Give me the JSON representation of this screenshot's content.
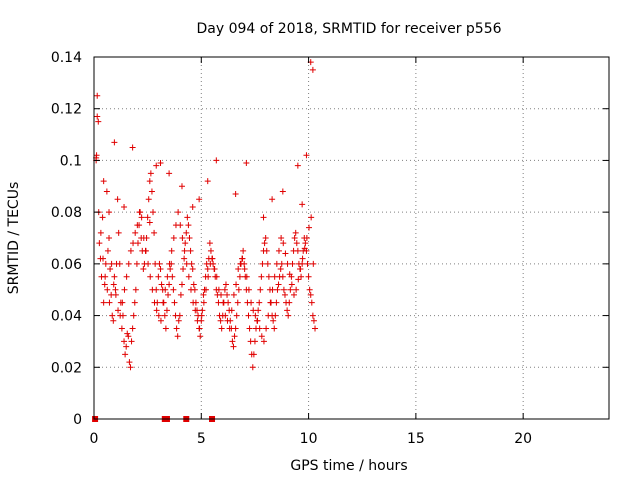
{
  "chart_data": {
    "type": "scatter",
    "title": "Day 094 of 2018, SRMTID for receiver p556",
    "xlabel": "GPS time / hours",
    "ylabel": "SRMTID / TECUs",
    "xlim": [
      0,
      24
    ],
    "ylim": [
      0,
      0.14
    ],
    "xticks": [
      0,
      5,
      10,
      15,
      20
    ],
    "xtick_labels": [
      "0",
      "5",
      "10",
      "15",
      "20"
    ],
    "yticks": [
      0,
      0.02,
      0.04,
      0.06,
      0.08,
      0.1,
      0.12,
      0.14
    ],
    "ytick_labels": [
      "0",
      "0.02",
      "0.04",
      "0.06",
      "0.08",
      "0.1",
      "0.12",
      "0.14"
    ],
    "grid": true,
    "marker": "+",
    "color": "#e00000",
    "series": [
      {
        "name": "SRMTID",
        "x": [
          0.1,
          0.15,
          0.2,
          0.25,
          0.3,
          0.35,
          0.4,
          0.45,
          0.5,
          0.55,
          0.6,
          0.65,
          0.7,
          0.75,
          0.8,
          0.85,
          0.9,
          0.95,
          1.0,
          1.05,
          1.1,
          1.15,
          1.2,
          1.25,
          1.3,
          1.35,
          1.4,
          1.45,
          1.5,
          1.55,
          1.6,
          1.65,
          1.7,
          1.75,
          1.8,
          1.85,
          1.9,
          1.95,
          2.0,
          2.05,
          2.1,
          2.15,
          2.2,
          2.25,
          2.3,
          2.35,
          2.4,
          2.45,
          2.5,
          2.55,
          2.6,
          2.65,
          2.7,
          2.75,
          2.8,
          2.85,
          2.9,
          2.95,
          3.0,
          3.05,
          3.1,
          3.15,
          3.2,
          3.25,
          3.3,
          3.35,
          3.4,
          3.45,
          3.5,
          3.55,
          3.6,
          3.65,
          3.7,
          3.75,
          3.8,
          3.85,
          3.9,
          3.95,
          4.0,
          4.05,
          4.1,
          4.15,
          4.2,
          4.25,
          4.3,
          4.35,
          4.4,
          4.45,
          4.5,
          4.55,
          4.6,
          4.65,
          4.7,
          4.75,
          4.8,
          4.85,
          4.9,
          4.95,
          5.0,
          5.05,
          5.1,
          5.15,
          5.2,
          5.25,
          5.3,
          5.35,
          5.4,
          5.45,
          5.5,
          5.55,
          5.6,
          5.65,
          5.7,
          5.75,
          5.8,
          5.85,
          5.9,
          5.95,
          6.0,
          6.05,
          6.1,
          6.15,
          6.2,
          6.25,
          6.3,
          6.35,
          6.4,
          6.45,
          6.5,
          6.55,
          6.6,
          6.65,
          6.7,
          6.75,
          6.8,
          6.85,
          6.9,
          6.95,
          7.0,
          7.05,
          7.1,
          7.15,
          7.2,
          7.25,
          7.3,
          7.35,
          7.4,
          7.45,
          7.5,
          7.55,
          7.6,
          7.65,
          7.7,
          7.75,
          7.8,
          7.85,
          7.9,
          7.95,
          8.0,
          8.05,
          8.1,
          8.15,
          8.2,
          8.25,
          8.3,
          8.35,
          8.4,
          8.45,
          8.5,
          8.55,
          8.6,
          8.65,
          8.7,
          8.75,
          8.8,
          8.85,
          8.9,
          8.95,
          9.0,
          9.05,
          9.1,
          9.15,
          9.2,
          9.25,
          9.3,
          9.35,
          9.4,
          9.45,
          9.5,
          9.55,
          9.6,
          9.65,
          9.7,
          9.75,
          9.8,
          9.85,
          9.9,
          9.95,
          10.0,
          10.05,
          10.1,
          10.15,
          10.2,
          10.25,
          10.3,
          0.12,
          0.22,
          0.32,
          0.42,
          0.52,
          0.62,
          0.72,
          0.82,
          0.92,
          1.02,
          1.12,
          1.22,
          1.32,
          1.42,
          1.52,
          1.62,
          1.72,
          1.82,
          1.92,
          2.02,
          2.12,
          2.22,
          2.32,
          2.42,
          2.52,
          2.62,
          2.72,
          2.82,
          2.92,
          3.02,
          3.12,
          3.22,
          3.32,
          3.42,
          3.52,
          3.62,
          3.72,
          3.82,
          3.92,
          4.02,
          4.12,
          4.22,
          4.32,
          4.42,
          4.52,
          4.62,
          4.72,
          4.82,
          4.92,
          5.02,
          5.12,
          5.22,
          5.32,
          5.42,
          5.52,
          5.62,
          5.72,
          5.82,
          5.92,
          6.02,
          6.12,
          6.22,
          6.32,
          6.42,
          6.52,
          6.62,
          6.72,
          6.82,
          6.92,
          7.02,
          7.12,
          7.22,
          7.32,
          7.42,
          7.52,
          7.62,
          7.72,
          7.82,
          7.92,
          8.02,
          8.12,
          8.22,
          8.32,
          8.42,
          8.52,
          8.62,
          8.72,
          8.82,
          8.92,
          9.02,
          9.12,
          9.22,
          9.32,
          9.42,
          9.52,
          9.62,
          9.72,
          9.82,
          9.92,
          10.02,
          10.12,
          10.22,
          0.1,
          0.15,
          0.45,
          0.7,
          0.95,
          1.4,
          1.8,
          2.6,
          2.9,
          3.1,
          3.5,
          4.1,
          4.6,
          4.9,
          5.3,
          5.7,
          6.6,
          7.1,
          7.9,
          8.3,
          8.8,
          9.5,
          9.7,
          9.9,
          10.1,
          10.2,
          0.05,
          3.3,
          3.4,
          4.3,
          5.5
        ],
        "y": [
          0.101,
          0.125,
          0.115,
          0.068,
          0.062,
          0.055,
          0.078,
          0.045,
          0.052,
          0.06,
          0.088,
          0.065,
          0.07,
          0.058,
          0.048,
          0.04,
          0.038,
          0.055,
          0.05,
          0.06,
          0.085,
          0.072,
          0.06,
          0.045,
          0.035,
          0.04,
          0.03,
          0.025,
          0.028,
          0.033,
          0.032,
          0.022,
          0.02,
          0.03,
          0.035,
          0.04,
          0.045,
          0.05,
          0.06,
          0.068,
          0.075,
          0.08,
          0.07,
          0.065,
          0.058,
          0.06,
          0.065,
          0.07,
          0.078,
          0.085,
          0.092,
          0.095,
          0.088,
          0.08,
          0.072,
          0.06,
          0.05,
          0.045,
          0.055,
          0.06,
          0.058,
          0.052,
          0.05,
          0.045,
          0.04,
          0.035,
          0.042,
          0.048,
          0.052,
          0.058,
          0.06,
          0.055,
          0.05,
          0.045,
          0.04,
          0.035,
          0.032,
          0.038,
          0.04,
          0.048,
          0.052,
          0.058,
          0.062,
          0.068,
          0.072,
          0.078,
          0.075,
          0.07,
          0.065,
          0.06,
          0.058,
          0.052,
          0.05,
          0.045,
          0.042,
          0.04,
          0.035,
          0.032,
          0.038,
          0.042,
          0.048,
          0.05,
          0.055,
          0.06,
          0.058,
          0.062,
          0.068,
          0.065,
          0.062,
          0.06,
          0.058,
          0.055,
          0.05,
          0.048,
          0.045,
          0.04,
          0.038,
          0.035,
          0.04,
          0.045,
          0.05,
          0.052,
          0.048,
          0.045,
          0.042,
          0.038,
          0.035,
          0.03,
          0.028,
          0.032,
          0.035,
          0.04,
          0.045,
          0.05,
          0.055,
          0.06,
          0.062,
          0.065,
          0.06,
          0.055,
          0.05,
          0.045,
          0.04,
          0.035,
          0.03,
          0.025,
          0.02,
          0.025,
          0.03,
          0.035,
          0.038,
          0.042,
          0.045,
          0.05,
          0.055,
          0.06,
          0.065,
          0.068,
          0.07,
          0.065,
          0.06,
          0.055,
          0.05,
          0.045,
          0.04,
          0.038,
          0.035,
          0.04,
          0.045,
          0.05,
          0.052,
          0.055,
          0.058,
          0.06,
          0.055,
          0.05,
          0.048,
          0.045,
          0.042,
          0.04,
          0.045,
          0.05,
          0.055,
          0.06,
          0.065,
          0.07,
          0.072,
          0.068,
          0.065,
          0.06,
          0.058,
          0.055,
          0.06,
          0.065,
          0.07,
          0.068,
          0.065,
          0.06,
          0.055,
          0.05,
          0.048,
          0.045,
          0.04,
          0.038,
          0.035,
          0.102,
          0.08,
          0.072,
          0.062,
          0.055,
          0.05,
          0.045,
          0.06,
          0.052,
          0.048,
          0.042,
          0.04,
          0.045,
          0.05,
          0.055,
          0.06,
          0.065,
          0.068,
          0.072,
          0.075,
          0.08,
          0.078,
          0.07,
          0.065,
          0.06,
          0.055,
          0.05,
          0.045,
          0.042,
          0.04,
          0.038,
          0.045,
          0.05,
          0.055,
          0.06,
          0.065,
          0.07,
          0.075,
          0.08,
          0.075,
          0.07,
          0.065,
          0.06,
          0.055,
          0.05,
          0.045,
          0.042,
          0.038,
          0.035,
          0.04,
          0.045,
          0.05,
          0.055,
          0.06,
          0.062,
          0.058,
          0.055,
          0.05,
          0.048,
          0.045,
          0.04,
          0.038,
          0.035,
          0.042,
          0.048,
          0.052,
          0.058,
          0.06,
          0.062,
          0.058,
          0.055,
          0.05,
          0.045,
          0.042,
          0.04,
          0.038,
          0.035,
          0.032,
          0.03,
          0.035,
          0.04,
          0.045,
          0.05,
          0.055,
          0.06,
          0.065,
          0.07,
          0.068,
          0.064,
          0.06,
          0.056,
          0.052,
          0.048,
          0.05,
          0.054,
          0.058,
          0.062,
          0.066,
          0.07,
          0.074,
          0.078,
          0.06,
          0.1,
          0.117,
          0.092,
          0.08,
          0.107,
          0.082,
          0.105,
          0.076,
          0.098,
          0.099,
          0.095,
          0.09,
          0.082,
          0.085,
          0.092,
          0.1,
          0.087,
          0.099,
          0.078,
          0.085,
          0.088,
          0.098,
          0.083,
          0.102,
          0.138,
          0.135,
          0,
          0,
          0,
          0,
          0
        ]
      }
    ]
  }
}
